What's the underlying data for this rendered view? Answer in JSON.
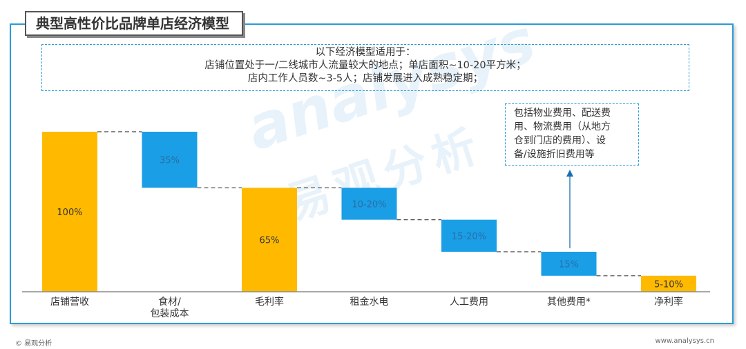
{
  "title": "典型高性价比品牌单店经济模型",
  "note": {
    "lines": [
      "以下经济模型适用于：",
      "店铺位置处于一/二线城市人流量较大的地点；单店面积~10-20平方米；",
      "店内工作人员数~3-5人；店铺发展进入成熟稳定期；"
    ]
  },
  "callout": {
    "lines": [
      "包括物业费用、配送费",
      "用、物流费用（从地方",
      "仓到门店的费用）、设",
      "备/设施折旧费用等"
    ]
  },
  "watermark": {
    "en": "analysys",
    "cn": "易观分析"
  },
  "footer": {
    "left": "© 易观分析",
    "right": "www.analysys.cn"
  },
  "colors": {
    "total": "#ffba00",
    "cost": "#1a9ee6",
    "frame": "#2a9bd6"
  },
  "chart_data": {
    "type": "waterfall",
    "unit": "%",
    "categories": [
      "店铺营收",
      [
        "食材/",
        "包装成本"
      ],
      "毛利率",
      "租金水电",
      "人工费用",
      "其他费用*",
      "净利率"
    ],
    "bars": [
      {
        "label": "100%",
        "kind": "total",
        "start": 0,
        "end": 100
      },
      {
        "label": "35%",
        "kind": "cost",
        "start": 65,
        "end": 100
      },
      {
        "label": "65%",
        "kind": "total",
        "start": 0,
        "end": 65
      },
      {
        "label": "10-20%",
        "kind": "cost",
        "start": 45,
        "end": 65
      },
      {
        "label": "15-20%",
        "kind": "cost",
        "start": 25,
        "end": 45
      },
      {
        "label": "15%",
        "kind": "cost",
        "start": 10,
        "end": 25
      },
      {
        "label": "5-10%",
        "kind": "total",
        "start": 0,
        "end": 10
      }
    ],
    "ylim": [
      0,
      100
    ]
  }
}
